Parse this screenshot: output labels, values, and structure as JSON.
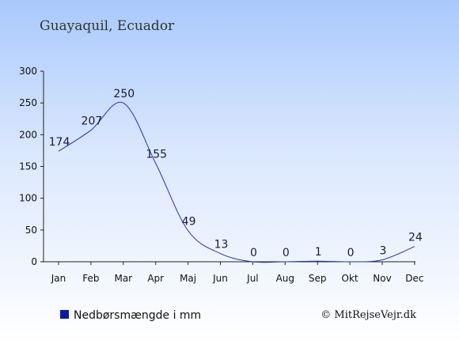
{
  "chart_data": {
    "type": "line",
    "title": "Guayaquil, Ecuador",
    "categories": [
      "Jan",
      "Feb",
      "Mar",
      "Apr",
      "Maj",
      "Jun",
      "Jul",
      "Aug",
      "Sep",
      "Okt",
      "Nov",
      "Dec"
    ],
    "series": [
      {
        "name": "Nedbørsmængde i mm",
        "values": [
          174,
          207,
          250,
          155,
          49,
          13,
          0,
          0,
          1,
          0,
          3,
          24
        ],
        "color": "#2a2fb4"
      }
    ],
    "ylim": [
      0,
      300
    ],
    "yticks": [
      0,
      50,
      100,
      150,
      200,
      250,
      300
    ],
    "xlabel": "",
    "ylabel": "",
    "grid": false,
    "legend": {
      "label": "Nedbørsmængde i mm",
      "position": "bottom-left",
      "marker_color": "#0a1aa8"
    },
    "credit": "© MitRejseVejr.dk",
    "background_colors": [
      "#a9c9fb",
      "#ffffff"
    ]
  }
}
